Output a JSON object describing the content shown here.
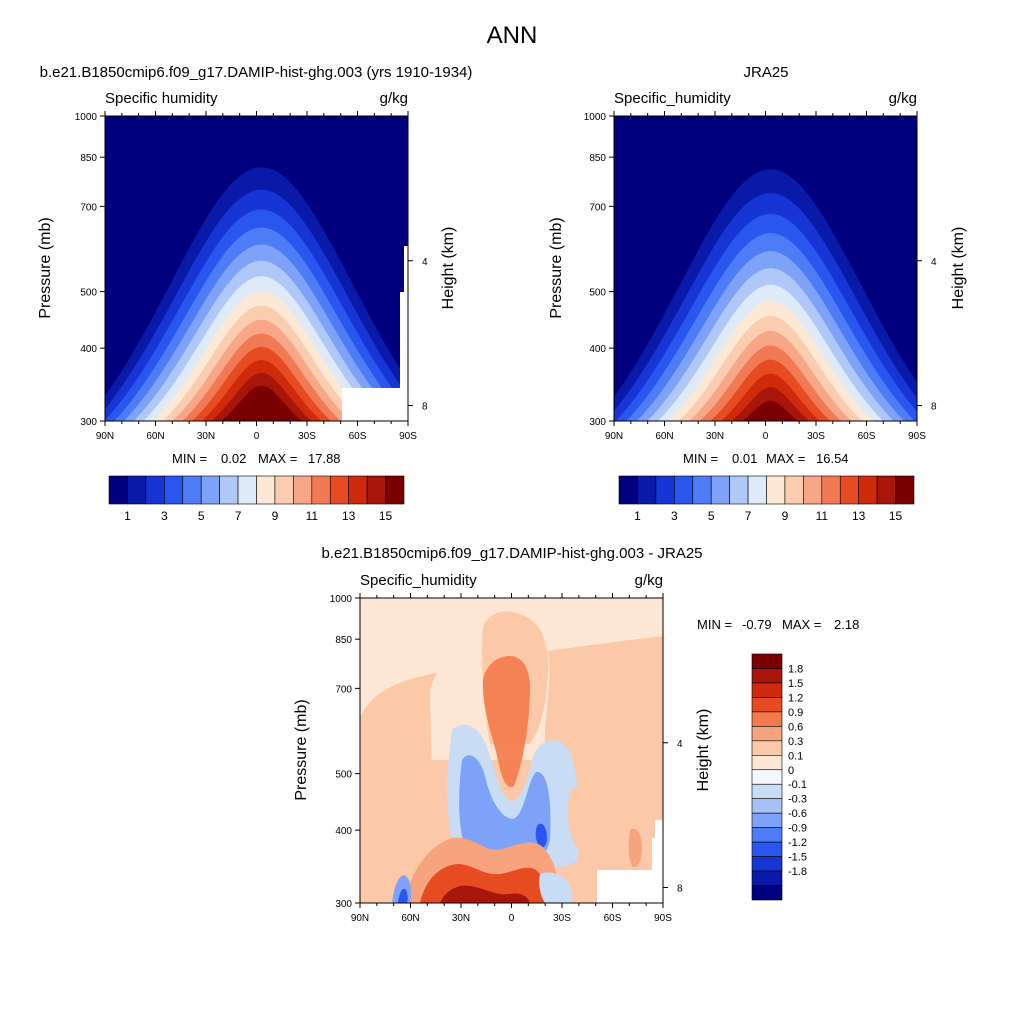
{
  "figure": {
    "title": "ANN"
  },
  "chart_data": [
    {
      "type": "heatmap",
      "panel_title": "b.e21.B1850cmip6.f09_g17.DAMIP-hist-ghg.003 (yrs 1910-1934)",
      "variable_label": "Specific humidity",
      "units_label": "g/kg",
      "ylabel": "Pressure (mb)",
      "y2label": "Height (km)",
      "x_ticks": [
        "90N",
        "60N",
        "30N",
        "0",
        "30S",
        "60S",
        "90S"
      ],
      "y_ticks": [
        "300",
        "400",
        "500",
        "700",
        "850",
        "1000"
      ],
      "y2_ticks": [
        "8",
        "4"
      ],
      "ylim": [
        1000,
        300
      ],
      "min_label": "MIN =",
      "min_value": "0.02",
      "max_label": "MAX =",
      "max_value": "17.88",
      "peak": {
        "lat": 0,
        "value": 17.88
      },
      "colorbar": {
        "orientation": "horizontal",
        "labels": [
          "1",
          "3",
          "5",
          "7",
          "9",
          "11",
          "13",
          "15"
        ],
        "colors": [
          "#00007f",
          "#0a1aa8",
          "#1735d5",
          "#2a56f0",
          "#4d7cf6",
          "#7ea2f8",
          "#b0c8f8",
          "#deeaf8",
          "#fde8d5",
          "#fbcdb0",
          "#f7a788",
          "#f17a55",
          "#e64b22",
          "#cf2a0b",
          "#a8150a",
          "#7a0000"
        ]
      }
    },
    {
      "type": "heatmap",
      "panel_title": "JRA25",
      "variable_label": "Specific_humidity",
      "units_label": "g/kg",
      "ylabel": "Pressure (mb)",
      "y2label": "Height (km)",
      "x_ticks": [
        "90N",
        "60N",
        "30N",
        "0",
        "30S",
        "60S",
        "90S"
      ],
      "y_ticks": [
        "300",
        "400",
        "500",
        "700",
        "850",
        "1000"
      ],
      "y2_ticks": [
        "8",
        "4"
      ],
      "ylim": [
        1000,
        300
      ],
      "min_label": "MIN =",
      "min_value": "0.01",
      "max_label": "MAX =",
      "max_value": "16.54",
      "peak": {
        "lat": 0,
        "value": 16.54
      },
      "colorbar": {
        "orientation": "horizontal",
        "labels": [
          "1",
          "3",
          "5",
          "7",
          "9",
          "11",
          "13",
          "15"
        ],
        "colors": [
          "#00007f",
          "#0a1aa8",
          "#1735d5",
          "#2a56f0",
          "#4d7cf6",
          "#7ea2f8",
          "#b0c8f8",
          "#deeaf8",
          "#fde8d5",
          "#fbcdb0",
          "#f7a788",
          "#f17a55",
          "#e64b22",
          "#cf2a0b",
          "#a8150a",
          "#7a0000"
        ]
      }
    },
    {
      "type": "heatmap",
      "panel_title": "b.e21.B1850cmip6.f09_g17.DAMIP-hist-ghg.003 - JRA25",
      "variable_label": "Specific_humidity",
      "units_label": "g/kg",
      "ylabel": "Pressure (mb)",
      "y2label": "Height (km)",
      "x_ticks": [
        "90N",
        "60N",
        "30N",
        "0",
        "30S",
        "60S",
        "90S"
      ],
      "y_ticks": [
        "300",
        "400",
        "500",
        "700",
        "850",
        "1000"
      ],
      "y2_ticks": [
        "8",
        "4"
      ],
      "ylim": [
        1000,
        300
      ],
      "min_label": "MIN =",
      "min_value": "-0.79",
      "max_label": "MAX =",
      "max_value": "2.18",
      "colorbar": {
        "orientation": "vertical",
        "labels": [
          "1.8",
          "1.5",
          "1.2",
          "0.9",
          "0.6",
          "0.3",
          "0.1",
          "0",
          "-0.1",
          "-0.3",
          "-0.6",
          "-0.9",
          "-1.2",
          "-1.5",
          "-1.8"
        ],
        "colors": [
          "#7a0000",
          "#a8150a",
          "#cf2a0b",
          "#e64b22",
          "#f47a4a",
          "#f7a37e",
          "#fbc9a8",
          "#fde6d3",
          "#f4f8fd",
          "#c9dcf6",
          "#a5c1f6",
          "#7ea2f8",
          "#4d7cf6",
          "#2a56f0",
          "#1735d5",
          "#0a1aa8",
          "#00007f"
        ]
      }
    }
  ]
}
